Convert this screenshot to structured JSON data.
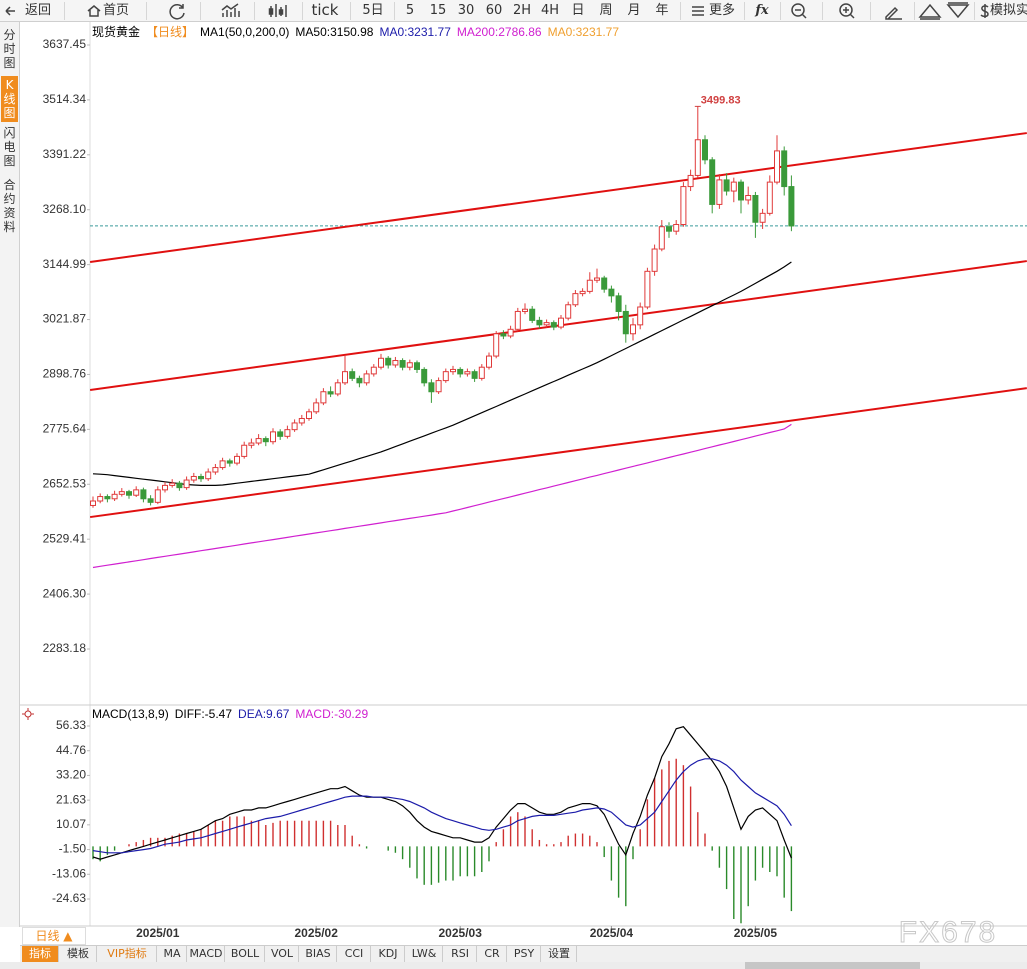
{
  "toolbar": {
    "items": [
      "返回",
      "首页",
      "tick",
      "5日",
      "5",
      "15",
      "30",
      "60",
      "2H",
      "4H",
      "日",
      "周",
      "月",
      "年",
      "更多",
      "fx",
      "模拟实"
    ]
  },
  "side_tabs": [
    "分时图",
    "K线图",
    "闪电图",
    "合约资料"
  ],
  "bottom_bar": {
    "period": "日线 ▲",
    "tabs": [
      "指标",
      "模板",
      "VIP指标",
      "MA",
      "MACD",
      "BOLL",
      "VOL",
      "BIAS",
      "CCI",
      "KDJ",
      "LW&",
      "RSI",
      "CR",
      "PSY",
      "设置"
    ]
  },
  "watermark": "FX678",
  "chart_data": [
    {
      "type": "candlestick",
      "title": "现货黄金",
      "period": "【日线】",
      "indicator": "MA1(50,0,200,0)",
      "up_color": "#e03a3a",
      "down_color": "#3a9a3a",
      "trend_color": "#e01010",
      "last_price": 3231.77,
      "last_price_color": "#3a9a9a",
      "ylim": [
        2168.83,
        3671.08
      ],
      "yticks": [
        3637.45,
        3514.34,
        3391.22,
        {
          "value": 3268.1,
          "label": "3268.10"
        },
        3144.99,
        3021.87,
        2898.76,
        2775.64,
        2652.53,
        2529.41,
        {
          "value": 2406.3,
          "label": "2406.30"
        },
        2283.18
      ],
      "ohlc": [
        [
          2605,
          2625,
          2600,
          2615
        ],
        [
          2615,
          2632,
          2610,
          2625
        ],
        [
          2625,
          2630,
          2612,
          2620
        ],
        [
          2620,
          2638,
          2615,
          2630
        ],
        [
          2630,
          2644,
          2625,
          2636
        ],
        [
          2636,
          2640,
          2620,
          2628
        ],
        [
          2628,
          2648,
          2624,
          2640
        ],
        [
          2640,
          2645,
          2612,
          2620
        ],
        [
          2620,
          2628,
          2605,
          2612
        ],
        [
          2612,
          2648,
          2608,
          2640
        ],
        [
          2640,
          2658,
          2634,
          2650
        ],
        [
          2650,
          2664,
          2645,
          2655
        ],
        [
          2655,
          2660,
          2638,
          2645
        ],
        [
          2645,
          2670,
          2640,
          2662
        ],
        [
          2662,
          2678,
          2656,
          2670
        ],
        [
          2670,
          2676,
          2658,
          2665
        ],
        [
          2665,
          2688,
          2660,
          2680
        ],
        [
          2680,
          2698,
          2674,
          2690
        ],
        [
          2690,
          2712,
          2685,
          2705
        ],
        [
          2705,
          2710,
          2692,
          2700
        ],
        [
          2700,
          2722,
          2695,
          2715
        ],
        [
          2715,
          2748,
          2710,
          2740
        ],
        [
          2740,
          2755,
          2733,
          2745
        ],
        [
          2745,
          2765,
          2740,
          2755
        ],
        [
          2755,
          2760,
          2738,
          2748
        ],
        [
          2748,
          2778,
          2742,
          2770
        ],
        [
          2770,
          2776,
          2752,
          2760
        ],
        [
          2760,
          2784,
          2755,
          2775
        ],
        [
          2775,
          2798,
          2770,
          2790
        ],
        [
          2790,
          2808,
          2784,
          2800
        ],
        [
          2800,
          2822,
          2795,
          2815
        ],
        [
          2815,
          2845,
          2810,
          2835
        ],
        [
          2835,
          2868,
          2830,
          2860
        ],
        [
          2860,
          2872,
          2848,
          2855
        ],
        [
          2855,
          2888,
          2850,
          2880
        ],
        [
          2880,
          2942,
          2875,
          2905
        ],
        [
          2905,
          2912,
          2884,
          2890
        ],
        [
          2890,
          2896,
          2870,
          2880
        ],
        [
          2880,
          2908,
          2874,
          2900
        ],
        [
          2900,
          2922,
          2894,
          2915
        ],
        [
          2915,
          2945,
          2910,
          2935
        ],
        [
          2935,
          2940,
          2912,
          2920
        ],
        [
          2920,
          2938,
          2914,
          2930
        ],
        [
          2930,
          2935,
          2908,
          2915
        ],
        [
          2915,
          2932,
          2908,
          2925
        ],
        [
          2925,
          2930,
          2902,
          2910
        ],
        [
          2910,
          2915,
          2872,
          2880
        ],
        [
          2880,
          2888,
          2835,
          2860
        ],
        [
          2860,
          2892,
          2855,
          2885
        ],
        [
          2885,
          2912,
          2880,
          2905
        ],
        [
          2905,
          2918,
          2898,
          2910
        ],
        [
          2910,
          2915,
          2892,
          2900
        ],
        [
          2900,
          2912,
          2894,
          2905
        ],
        [
          2905,
          2910,
          2882,
          2890
        ],
        [
          2890,
          2922,
          2885,
          2915
        ],
        [
          2915,
          2948,
          2910,
          2940
        ],
        [
          2940,
          2996,
          2935,
          2990
        ],
        [
          2990,
          2998,
          2978,
          2985
        ],
        [
          2985,
          3008,
          2980,
          3000
        ],
        [
          3000,
          3048,
          2995,
          3040
        ],
        [
          3040,
          3058,
          3034,
          3045
        ],
        [
          3045,
          3052,
          3014,
          3020
        ],
        [
          3020,
          3028,
          3002,
          3010
        ],
        [
          3010,
          3022,
          3004,
          3015
        ],
        [
          3015,
          3020,
          2998,
          3005
        ],
        [
          3005,
          3032,
          3000,
          3025
        ],
        [
          3025,
          3062,
          3020,
          3055
        ],
        [
          3055,
          3088,
          3050,
          3080
        ],
        [
          3080,
          3092,
          3074,
          3085
        ],
        [
          3085,
          3128,
          3080,
          3110
        ],
        [
          3110,
          3136,
          3104,
          3115
        ],
        [
          3115,
          3120,
          3082,
          3090
        ],
        [
          3090,
          3098,
          3060,
          3075
        ],
        [
          3075,
          3082,
          3020,
          3040
        ],
        [
          3040,
          3055,
          2970,
          2990
        ],
        [
          2990,
          3025,
          2975,
          3010
        ],
        [
          3010,
          3060,
          3000,
          3050
        ],
        [
          3050,
          3138,
          3045,
          3130
        ],
        [
          3130,
          3190,
          3120,
          3180
        ],
        [
          3180,
          3245,
          3175,
          3230
        ],
        [
          3230,
          3240,
          3205,
          3220
        ],
        [
          3220,
          3245,
          3212,
          3235
        ],
        [
          3235,
          3330,
          3230,
          3320
        ],
        [
          3320,
          3358,
          3310,
          3345
        ],
        [
          3345,
          3499.83,
          3340,
          3425
        ],
        [
          3425,
          3435,
          3370,
          3380
        ],
        [
          3380,
          3386,
          3260,
          3280
        ],
        [
          3280,
          3348,
          3270,
          3335
        ],
        [
          3335,
          3350,
          3300,
          3310
        ],
        [
          3310,
          3340,
          3285,
          3330
        ],
        [
          3330,
          3336,
          3260,
          3290
        ],
        [
          3290,
          3320,
          3280,
          3300
        ],
        [
          3300,
          3308,
          3205,
          3240
        ],
        [
          3240,
          3270,
          3225,
          3260
        ],
        [
          3260,
          3345,
          3255,
          3330
        ],
        [
          3330,
          3435,
          3325,
          3400
        ],
        [
          3400,
          3410,
          3300,
          3320
        ],
        [
          3320,
          3345,
          3220,
          3231.77
        ]
      ],
      "series": [
        {
          "name": "MA50:3150.98",
          "color": "#000000",
          "values": [
            2676,
            2675,
            2674,
            2672,
            2670,
            2668,
            2666,
            2664,
            2662,
            2660,
            2658,
            2656,
            2654,
            2652,
            2651,
            2650,
            2650,
            2650,
            2651,
            2653,
            2655,
            2657,
            2659,
            2661,
            2663,
            2665,
            2667,
            2669,
            2671,
            2673,
            2675,
            2680,
            2685,
            2690,
            2695,
            2700,
            2705,
            2710,
            2715,
            2720,
            2725,
            2731,
            2737,
            2743,
            2749,
            2755,
            2761,
            2767,
            2773,
            2779,
            2785,
            2792,
            2799,
            2806,
            2813,
            2820,
            2827,
            2834,
            2841,
            2848,
            2855,
            2862,
            2869,
            2876,
            2883,
            2890,
            2897,
            2904,
            2911,
            2918,
            2925,
            2933,
            2941,
            2949,
            2957,
            2965,
            2973,
            2981,
            2989,
            2997,
            3005,
            3013,
            3021,
            3029,
            3037,
            3045,
            3053,
            3061,
            3069,
            3077,
            3085,
            3094,
            3103,
            3112,
            3121,
            3130,
            3140,
            3150.98
          ]
        },
        {
          "name": "MA200:2786.86",
          "color": "#d020d0",
          "values": [
            2466,
            2468.5,
            2471,
            2473.5,
            2476,
            2478.5,
            2481,
            2483.5,
            2486,
            2488.5,
            2491,
            2493.5,
            2496,
            2498.5,
            2501,
            2503.5,
            2506,
            2508.5,
            2511,
            2513.5,
            2516,
            2518.5,
            2521,
            2523.5,
            2526,
            2528.5,
            2531,
            2533.5,
            2536,
            2538.5,
            2541,
            2543.5,
            2546,
            2548.5,
            2551,
            2553.5,
            2556,
            2558.5,
            2561,
            2563.5,
            2566,
            2568.5,
            2571,
            2573.5,
            2576,
            2578.5,
            2581,
            2583.5,
            2586,
            2588.5,
            2592.5,
            2596.5,
            2600.5,
            2604.5,
            2608.5,
            2612.5,
            2616.5,
            2620.5,
            2624.5,
            2628.5,
            2632.5,
            2636.5,
            2640.5,
            2644.5,
            2648.5,
            2652.5,
            2656.5,
            2660.5,
            2664.5,
            2668.5,
            2672.5,
            2676.5,
            2680.5,
            2684.5,
            2688.5,
            2692.5,
            2696.5,
            2700.5,
            2704.5,
            2708.5,
            2712.5,
            2716.5,
            2720.5,
            2724.5,
            2728.5,
            2732.5,
            2736.5,
            2740.5,
            2744.5,
            2748.5,
            2752.5,
            2756.5,
            2760.5,
            2764.5,
            2768.5,
            2772.5,
            2776.5,
            2786.86
          ]
        }
      ],
      "ma0_labels": [
        {
          "name": "MA0:3231.77",
          "color": "#1c1caa"
        },
        {
          "name": "MA0:3231.77",
          "color": "#f0a030"
        }
      ],
      "trendlines": [
        {
          "x": [
            -0.4,
            129.7
          ],
          "y": [
            3151,
            3440
          ]
        },
        {
          "x": [
            -0.4,
            129.7
          ],
          "y": [
            2864,
            3153
          ]
        },
        {
          "x": [
            -0.4,
            129.7
          ],
          "y": [
            2579,
            2868
          ]
        }
      ]
    },
    {
      "type": "macd",
      "title": "MACD(13,8,9)",
      "ylim": [
        -34.46,
        62.88
      ],
      "yticks": [
        56.33,
        44.76,
        {
          "value": 33.2,
          "label": "33.20"
        },
        21.63,
        10.07,
        {
          "value": -1.5,
          "label": "-1.50"
        },
        -13.06,
        -24.63
      ],
      "xticks": [
        {
          "value": 9,
          "label": "2025/01"
        },
        {
          "value": 31,
          "label": "2025/02"
        },
        {
          "value": 51,
          "label": "2025/03"
        },
        {
          "value": 72,
          "label": "2025/04"
        },
        {
          "value": 92,
          "label": "2025/05"
        }
      ],
      "series": [
        {
          "name": "DIFF:-5.47",
          "color": "#000000",
          "values": [
            -5,
            -6,
            -5,
            -4,
            -3,
            -2,
            -1,
            0,
            1,
            2,
            3,
            4,
            5,
            6,
            7,
            8,
            10,
            12,
            13,
            15,
            16,
            17,
            17,
            18,
            18,
            19,
            20,
            21,
            22,
            23,
            24,
            25,
            26,
            27,
            27,
            28,
            26,
            24,
            23,
            23,
            23,
            22,
            21,
            19,
            16,
            12,
            9,
            7,
            6,
            5,
            4,
            4,
            3,
            2,
            2,
            4,
            9,
            13,
            17,
            20,
            20,
            18,
            16,
            15,
            15,
            16,
            18,
            19,
            20,
            20,
            19,
            15,
            8,
            1,
            -4,
            6,
            14,
            24,
            32,
            42,
            48,
            55,
            56,
            52,
            48,
            44,
            40,
            35,
            28,
            18,
            8,
            14,
            17,
            18,
            15,
            12,
            3,
            -5.47
          ]
        },
        {
          "name": "DEA:9.67",
          "color": "#1c1caa",
          "values": [
            -2,
            -2.5,
            -3,
            -3,
            -3,
            -2.5,
            -2,
            -1.5,
            -1,
            0,
            1,
            1.5,
            2,
            3,
            3.5,
            4,
            5,
            6,
            7,
            8,
            9,
            10,
            11,
            12,
            13,
            13.5,
            14,
            15,
            16,
            17,
            18,
            19,
            20,
            21,
            22,
            23,
            23.5,
            23.5,
            23.5,
            23,
            23,
            23,
            22.5,
            22,
            21,
            19.5,
            18,
            16,
            14.5,
            13,
            12,
            11,
            10,
            9,
            8,
            7.5,
            8,
            9,
            10,
            12,
            13,
            14,
            14.5,
            14.5,
            14.5,
            15,
            15.5,
            16,
            17,
            17.5,
            18,
            17.5,
            16,
            13,
            10,
            9,
            10,
            13,
            16,
            21,
            26,
            31,
            35,
            38,
            40,
            41,
            41,
            40,
            38,
            35,
            31,
            28,
            25,
            23,
            21,
            19,
            15,
            9.67
          ]
        }
      ],
      "histogram": {
        "name": "MACD:-30.29",
        "color": "#d020d0",
        "up_color": "#d03030",
        "down_color": "#2a8a2a",
        "values": [
          -6,
          -7,
          -4,
          -2,
          0,
          1,
          2,
          3,
          4,
          4,
          4,
          5,
          6,
          6,
          7,
          8,
          10,
          12,
          12,
          14,
          14,
          14,
          12,
          12,
          10,
          11,
          12,
          12,
          12,
          12,
          12,
          12,
          12,
          12,
          10,
          10,
          5,
          1,
          -1,
          0,
          0,
          -2,
          -3,
          -6,
          -10,
          -15,
          -18,
          -18,
          -17,
          -16,
          -16,
          -14,
          -14,
          -14,
          -12,
          -7,
          2,
          8,
          14,
          16,
          14,
          8,
          3,
          1,
          1,
          2,
          5,
          6,
          6,
          5,
          2,
          -5,
          -16,
          -24,
          -28,
          -6,
          8,
          22,
          32,
          36,
          40,
          41,
          38,
          28,
          16,
          6,
          -2,
          -10,
          -20,
          -34,
          -36,
          -28,
          -16,
          -10,
          -12,
          -14,
          -24,
          -30.29
        ]
      }
    }
  ]
}
